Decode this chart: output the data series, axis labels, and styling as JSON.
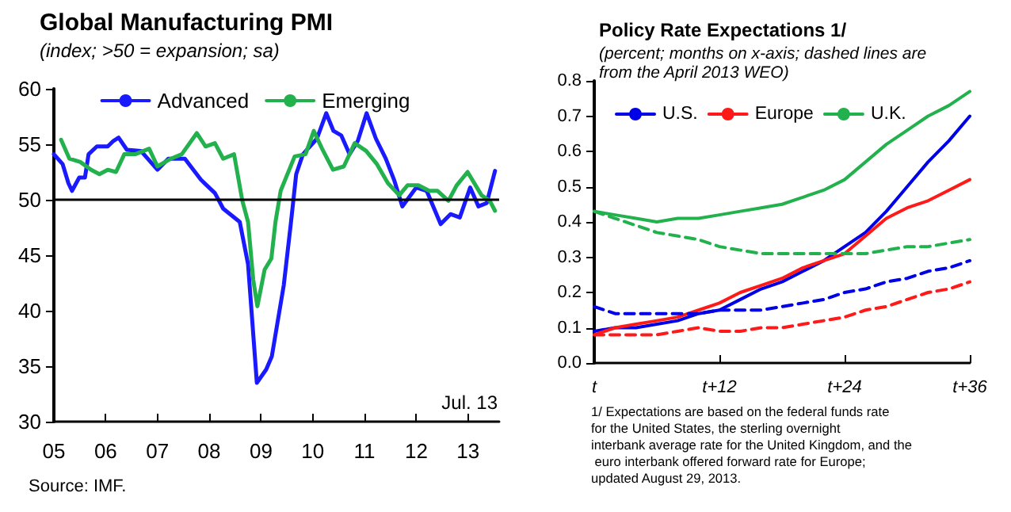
{
  "chart_data": [
    {
      "type": "line",
      "title": "Global Manufacturing PMI",
      "subtitle": "(index; >50 = expansion; sa)",
      "xlim": [
        2005,
        2013.6
      ],
      "xticks": [
        {
          "value": 2005,
          "label": "05"
        },
        {
          "value": 2006,
          "label": "06"
        },
        {
          "value": 2007,
          "label": "07"
        },
        {
          "value": 2008,
          "label": "08"
        },
        {
          "value": 2009,
          "label": "09"
        },
        {
          "value": 2010,
          "label": "10"
        },
        {
          "value": 2011,
          "label": "11"
        },
        {
          "value": 2012,
          "label": "12"
        },
        {
          "value": 2013,
          "label": "13"
        }
      ],
      "ylim": [
        30,
        60
      ],
      "yticks": [
        30,
        35,
        40,
        45,
        50,
        55,
        60
      ],
      "grid": false,
      "legend": "top",
      "marker": "none",
      "line_style": "solid",
      "ref_lines": [
        {
          "axis": "y",
          "value": 50,
          "color": "#000000"
        }
      ],
      "annotations": [
        "Jul. 13",
        "Source: IMF."
      ],
      "series": [
        {
          "name": "Advanced",
          "color": "#1a1aff",
          "x": [
            2005,
            2005.17,
            2005.28,
            2005.35,
            2005.49,
            2005.6,
            2005.67,
            2005.83,
            2006.04,
            2006.15,
            2006.25,
            2006.41,
            2006.68,
            2007,
            2007.21,
            2007.53,
            2007.84,
            2008.11,
            2008.27,
            2008.59,
            2008.75,
            2008.92,
            2009.1,
            2009.21,
            2009.44,
            2009.58,
            2009.68,
            2009.81,
            2010.08,
            2010.26,
            2010.4,
            2010.55,
            2010.71,
            2010.87,
            2011.04,
            2011.22,
            2011.41,
            2011.57,
            2011.73,
            2012,
            2012.2,
            2012.47,
            2012.66,
            2012.84,
            2013.04,
            2013.2,
            2013.36,
            2013.52
          ],
          "values": [
            54.1,
            53.2,
            51.5,
            50.8,
            52,
            52,
            54.1,
            54.8,
            54.8,
            55.3,
            55.6,
            54.5,
            54.4,
            52.7,
            53.7,
            53.7,
            51.8,
            50.6,
            49.2,
            48,
            44.2,
            33.5,
            34.7,
            35.9,
            42.3,
            48,
            52.3,
            54.1,
            55.5,
            57.8,
            56.2,
            55.8,
            54.1,
            55.3,
            57.8,
            55.5,
            53.7,
            51.8,
            49.4,
            51.1,
            50.8,
            47.8,
            48.7,
            48.4,
            51.1,
            49.4,
            49.7,
            52.6
          ]
        },
        {
          "name": "Emerging",
          "color": "#22b14c",
          "x": [
            2005.14,
            2005.3,
            2005.51,
            2005.72,
            2005.88,
            2006.04,
            2006.2,
            2006.36,
            2006.57,
            2006.84,
            2007,
            2007.26,
            2007.47,
            2007.76,
            2007.93,
            2008.11,
            2008.27,
            2008.48,
            2008.64,
            2008.75,
            2008.85,
            2008.93,
            2009.07,
            2009.2,
            2009.28,
            2009.38,
            2009.65,
            2009.86,
            2010.02,
            2010.18,
            2010.39,
            2010.6,
            2010.81,
            2011.03,
            2011.24,
            2011.45,
            2011.67,
            2011.83,
            2012.04,
            2012.25,
            2012.41,
            2012.62,
            2012.78,
            2012.99,
            2013.26,
            2013.42,
            2013.52
          ],
          "values": [
            55.4,
            53.7,
            53.4,
            52.7,
            52.3,
            52.7,
            52.5,
            54.1,
            54.1,
            54.6,
            53,
            53.7,
            54.1,
            56,
            54.8,
            55.1,
            53.7,
            54.1,
            49.9,
            48,
            42.8,
            40.4,
            43.7,
            44.7,
            48,
            50.8,
            53.9,
            54.1,
            56.2,
            54.6,
            52.7,
            53,
            55.1,
            54.4,
            53.2,
            51.5,
            50.4,
            51.3,
            51.3,
            50.8,
            50.8,
            49.9,
            51.3,
            52.5,
            50.4,
            49.9,
            49
          ]
        }
      ]
    },
    {
      "type": "line",
      "title": "Policy Rate Expectations 1/",
      "subtitle": "(percent; months on x-axis; dashed lines are from the April 2013 WEO)",
      "categories": [
        "t",
        null,
        null,
        null,
        null,
        null,
        "t+12",
        null,
        null,
        null,
        null,
        null,
        "t+24",
        null,
        null,
        null,
        null,
        null,
        "t+36"
      ],
      "ylim": [
        0,
        0.8
      ],
      "yticks": [
        {
          "value": 0,
          "label": "0.0"
        },
        0.1,
        0.2,
        0.3,
        0.4,
        0.5,
        0.6,
        0.7,
        0.8
      ],
      "grid": false,
      "legend": "top left",
      "marker": "none",
      "annotations": [
        "1/ Expectations are based on the federal funds rate for the United States, the sterling overnight interbank average rate for the United Kingdom, and the euro interbank offered forward rate for Europe; updated August 29, 2013."
      ],
      "series": [
        {
          "name": "U.S.",
          "color": "#0000e6",
          "line_style": "solid",
          "values": [
            0.09,
            0.1,
            0.1,
            0.11,
            0.12,
            0.14,
            0.15,
            0.18,
            0.21,
            0.23,
            0.26,
            0.29,
            0.33,
            0.37,
            0.43,
            0.5,
            0.57,
            0.63,
            0.7
          ]
        },
        {
          "name": "Europe",
          "color": "#ff1a1a",
          "line_style": "solid",
          "values": [
            0.08,
            0.1,
            0.11,
            0.12,
            0.13,
            0.15,
            0.17,
            0.2,
            0.22,
            0.24,
            0.27,
            0.29,
            0.31,
            0.36,
            0.41,
            0.44,
            0.46,
            0.49,
            0.52
          ]
        },
        {
          "name": "U.K.",
          "color": "#22b14c",
          "line_style": "solid",
          "values": [
            0.43,
            0.42,
            0.41,
            0.4,
            0.41,
            0.41,
            0.42,
            0.43,
            0.44,
            0.45,
            0.47,
            0.49,
            0.52,
            0.57,
            0.62,
            0.66,
            0.7,
            0.73,
            0.77
          ]
        },
        {
          "color": "#0000e6",
          "line_style": "dashed",
          "values": [
            0.16,
            0.14,
            0.14,
            0.14,
            0.14,
            0.14,
            0.15,
            0.15,
            0.15,
            0.16,
            0.17,
            0.18,
            0.2,
            0.21,
            0.23,
            0.24,
            0.26,
            0.27,
            0.29
          ]
        },
        {
          "color": "#ff1a1a",
          "line_style": "dashed",
          "values": [
            0.08,
            0.08,
            0.08,
            0.08,
            0.09,
            0.1,
            0.09,
            0.09,
            0.1,
            0.1,
            0.11,
            0.12,
            0.13,
            0.15,
            0.16,
            0.18,
            0.2,
            0.21,
            0.23
          ]
        },
        {
          "color": "#22b14c",
          "line_style": "dashed",
          "values": [
            0.43,
            0.41,
            0.39,
            0.37,
            0.36,
            0.35,
            0.33,
            0.32,
            0.31,
            0.31,
            0.31,
            0.31,
            0.31,
            0.31,
            0.32,
            0.33,
            0.33,
            0.34,
            0.35
          ]
        }
      ]
    }
  ]
}
